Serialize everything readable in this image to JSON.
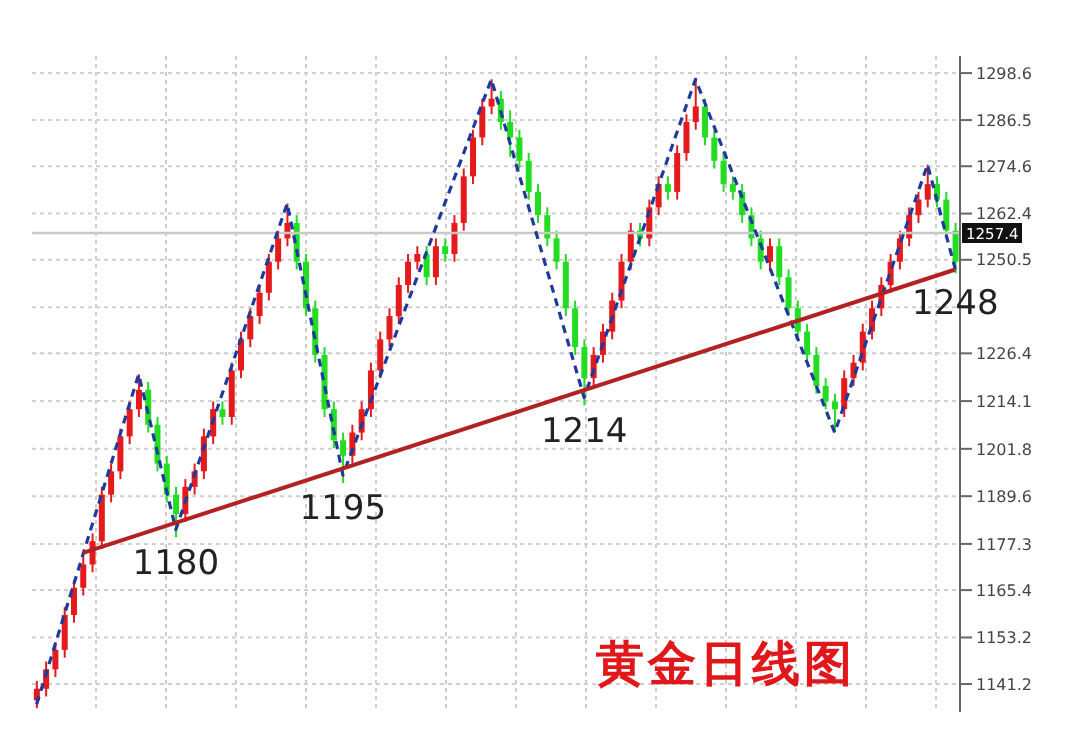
{
  "chart_data": {
    "type": "candlestick",
    "title": "黄金日线图",
    "categories": [
      null,
      null,
      null,
      null,
      null,
      null,
      null,
      null,
      null,
      null,
      null,
      null,
      null,
      null,
      null,
      null,
      null,
      null,
      null,
      null,
      null,
      null,
      null,
      null,
      null,
      null,
      null,
      null,
      null,
      null,
      null,
      null,
      null,
      null,
      null,
      null,
      null,
      null,
      null,
      null,
      null,
      null,
      null,
      null,
      null,
      null,
      null,
      null,
      null,
      null,
      null,
      null,
      null,
      null,
      null,
      null,
      null,
      null,
      null,
      null,
      null,
      null,
      null,
      null,
      null,
      null,
      null,
      null,
      null,
      null,
      null,
      null,
      null,
      null,
      null,
      null,
      null,
      null,
      null,
      null,
      null,
      null,
      null,
      null,
      null,
      null,
      null,
      null,
      null,
      null,
      null,
      null,
      null,
      null,
      null,
      null,
      null,
      null,
      null,
      null
    ],
    "ohlc": [
      [
        1137,
        1142,
        1135,
        1140
      ],
      [
        1140,
        1147,
        1138,
        1145
      ],
      [
        1145,
        1152,
        1143,
        1150
      ],
      [
        1150,
        1161,
        1148,
        1159
      ],
      [
        1159,
        1168,
        1157,
        1166
      ],
      [
        1166,
        1174,
        1164,
        1172
      ],
      [
        1172,
        1180,
        1170,
        1178
      ],
      [
        1178,
        1192,
        1176,
        1190
      ],
      [
        1190,
        1198,
        1188,
        1196
      ],
      [
        1196,
        1207,
        1194,
        1205
      ],
      [
        1205,
        1214,
        1203,
        1212
      ],
      [
        1212,
        1221,
        1210,
        1217
      ],
      [
        1217,
        1219,
        1206,
        1208
      ],
      [
        1208,
        1210,
        1196,
        1198
      ],
      [
        1198,
        1200,
        1188,
        1190
      ],
      [
        1190,
        1192,
        1179,
        1185
      ],
      [
        1185,
        1194,
        1183,
        1192
      ],
      [
        1192,
        1198,
        1190,
        1196
      ],
      [
        1196,
        1207,
        1194,
        1205
      ],
      [
        1205,
        1214,
        1203,
        1212
      ],
      [
        1212,
        1214,
        1208,
        1210
      ],
      [
        1210,
        1224,
        1208,
        1222
      ],
      [
        1222,
        1232,
        1220,
        1230
      ],
      [
        1230,
        1238,
        1228,
        1236
      ],
      [
        1236,
        1244,
        1234,
        1242
      ],
      [
        1242,
        1252,
        1240,
        1250
      ],
      [
        1250,
        1258,
        1248,
        1256
      ],
      [
        1256,
        1265,
        1254,
        1260
      ],
      [
        1260,
        1262,
        1248,
        1250
      ],
      [
        1250,
        1252,
        1236,
        1238
      ],
      [
        1238,
        1240,
        1224,
        1226
      ],
      [
        1226,
        1228,
        1210,
        1212
      ],
      [
        1212,
        1214,
        1202,
        1204
      ],
      [
        1204,
        1206,
        1193,
        1200
      ],
      [
        1200,
        1208,
        1198,
        1206
      ],
      [
        1206,
        1214,
        1204,
        1212
      ],
      [
        1212,
        1224,
        1210,
        1222
      ],
      [
        1222,
        1232,
        1220,
        1230
      ],
      [
        1230,
        1238,
        1228,
        1236
      ],
      [
        1236,
        1246,
        1234,
        1244
      ],
      [
        1244,
        1252,
        1242,
        1250
      ],
      [
        1250,
        1254,
        1248,
        1252
      ],
      [
        1252,
        1254,
        1244,
        1246
      ],
      [
        1246,
        1256,
        1244,
        1254
      ],
      [
        1254,
        1256,
        1250,
        1252
      ],
      [
        1252,
        1262,
        1250,
        1260
      ],
      [
        1260,
        1274,
        1258,
        1272
      ],
      [
        1272,
        1284,
        1270,
        1282
      ],
      [
        1282,
        1292,
        1280,
        1290
      ],
      [
        1290,
        1297,
        1288,
        1292
      ],
      [
        1292,
        1294,
        1284,
        1286
      ],
      [
        1286,
        1289,
        1277,
        1282
      ],
      [
        1282,
        1284,
        1274,
        1276
      ],
      [
        1276,
        1278,
        1266,
        1268
      ],
      [
        1268,
        1270,
        1260,
        1262
      ],
      [
        1262,
        1264,
        1254,
        1256
      ],
      [
        1256,
        1258,
        1248,
        1250
      ],
      [
        1250,
        1252,
        1236,
        1238
      ],
      [
        1238,
        1240,
        1226,
        1228
      ],
      [
        1228,
        1230,
        1213,
        1220
      ],
      [
        1220,
        1228,
        1218,
        1226
      ],
      [
        1226,
        1234,
        1224,
        1232
      ],
      [
        1232,
        1242,
        1230,
        1240
      ],
      [
        1240,
        1252,
        1238,
        1250
      ],
      [
        1250,
        1260,
        1248,
        1258
      ],
      [
        1258,
        1260,
        1254,
        1256
      ],
      [
        1256,
        1266,
        1254,
        1264
      ],
      [
        1264,
        1272,
        1262,
        1270
      ],
      [
        1270,
        1272,
        1266,
        1268
      ],
      [
        1268,
        1280,
        1266,
        1278
      ],
      [
        1278,
        1288,
        1276,
        1286
      ],
      [
        1286,
        1297,
        1284,
        1290
      ],
      [
        1290,
        1292,
        1280,
        1282
      ],
      [
        1282,
        1284,
        1274,
        1276
      ],
      [
        1276,
        1278,
        1268,
        1270
      ],
      [
        1270,
        1272,
        1266,
        1268
      ],
      [
        1268,
        1270,
        1260,
        1262
      ],
      [
        1262,
        1264,
        1254,
        1256
      ],
      [
        1256,
        1258,
        1248,
        1250
      ],
      [
        1250,
        1256,
        1248,
        1254
      ],
      [
        1254,
        1256,
        1244,
        1246
      ],
      [
        1246,
        1248,
        1236,
        1238
      ],
      [
        1238,
        1240,
        1230,
        1232
      ],
      [
        1232,
        1234,
        1224,
        1226
      ],
      [
        1226,
        1228,
        1216,
        1218
      ],
      [
        1218,
        1220,
        1212,
        1214
      ],
      [
        1214,
        1216,
        1206,
        1212
      ],
      [
        1212,
        1222,
        1210,
        1220
      ],
      [
        1220,
        1226,
        1218,
        1224
      ],
      [
        1224,
        1234,
        1222,
        1232
      ],
      [
        1232,
        1240,
        1230,
        1238
      ],
      [
        1238,
        1246,
        1236,
        1244
      ],
      [
        1244,
        1252,
        1242,
        1250
      ],
      [
        1250,
        1258,
        1248,
        1256
      ],
      [
        1256,
        1264,
        1254,
        1262
      ],
      [
        1262,
        1268,
        1260,
        1266
      ],
      [
        1266,
        1275,
        1264,
        1270
      ],
      [
        1270,
        1272,
        1264,
        1266
      ],
      [
        1266,
        1268,
        1256,
        1258
      ],
      [
        1258,
        1260,
        1247,
        1250
      ]
    ],
    "colors": [
      "#e41a1c",
      "#e41a1c",
      "#e41a1c",
      "#e41a1c",
      "#e41a1c",
      "#e41a1c",
      "#e41a1c",
      "#e41a1c",
      "#e41a1c",
      "#e41a1c",
      "#e41a1c",
      "#e41a1c",
      "#22dd22",
      "#22dd22",
      "#22dd22",
      "#22dd22",
      "#e41a1c",
      "#e41a1c",
      "#e41a1c",
      "#e41a1c",
      "#22dd22",
      "#e41a1c",
      "#e41a1c",
      "#e41a1c",
      "#e41a1c",
      "#e41a1c",
      "#e41a1c",
      "#e41a1c",
      "#22dd22",
      "#22dd22",
      "#22dd22",
      "#22dd22",
      "#22dd22",
      "#22dd22",
      "#e41a1c",
      "#e41a1c",
      "#e41a1c",
      "#e41a1c",
      "#e41a1c",
      "#e41a1c",
      "#e41a1c",
      "#e41a1c",
      "#22dd22",
      "#e41a1c",
      "#22dd22",
      "#e41a1c",
      "#e41a1c",
      "#e41a1c",
      "#e41a1c",
      "#e41a1c",
      "#22dd22",
      "#22dd22",
      "#22dd22",
      "#22dd22",
      "#22dd22",
      "#22dd22",
      "#22dd22",
      "#22dd22",
      "#22dd22",
      "#22dd22",
      "#e41a1c",
      "#e41a1c",
      "#e41a1c",
      "#e41a1c",
      "#e41a1c",
      "#22dd22",
      "#e41a1c",
      "#e41a1c",
      "#22dd22",
      "#e41a1c",
      "#e41a1c",
      "#e41a1c",
      "#22dd22",
      "#22dd22",
      "#22dd22",
      "#22dd22",
      "#22dd22",
      "#22dd22",
      "#22dd22",
      "#e41a1c",
      "#22dd22",
      "#22dd22",
      "#22dd22",
      "#22dd22",
      "#22dd22",
      "#22dd22",
      "#22dd22",
      "#e41a1c",
      "#e41a1c",
      "#e41a1c",
      "#e41a1c",
      "#e41a1c",
      "#e41a1c",
      "#e41a1c",
      "#e41a1c",
      "#e41a1c",
      "#e41a1c",
      "#22dd22",
      "#22dd22",
      "#22dd22"
    ],
    "series": [
      {
        "type": "line",
        "color": "#1f3a9e",
        "line_style": "dashed",
        "values": [
          1136,
          null,
          null,
          null,
          null,
          null,
          null,
          null,
          null,
          null,
          null,
          1221,
          null,
          null,
          null,
          1181,
          null,
          null,
          null,
          null,
          null,
          null,
          null,
          null,
          null,
          null,
          null,
          1265,
          null,
          null,
          null,
          null,
          null,
          1195,
          null,
          null,
          null,
          null,
          null,
          null,
          null,
          null,
          null,
          null,
          null,
          null,
          null,
          null,
          null,
          1297,
          null,
          null,
          null,
          null,
          null,
          null,
          null,
          null,
          null,
          1215,
          null,
          null,
          null,
          null,
          null,
          null,
          null,
          null,
          null,
          null,
          null,
          1297,
          null,
          null,
          null,
          null,
          null,
          null,
          null,
          null,
          null,
          null,
          null,
          null,
          null,
          null,
          1206,
          null,
          null,
          null,
          null,
          null,
          null,
          null,
          null,
          null,
          1275,
          null,
          null,
          1248
        ]
      },
      {
        "type": "line",
        "color": "#b22222",
        "line_style": "solid",
        "values": [
          null,
          null,
          null,
          null,
          null,
          1175,
          null,
          null,
          null,
          null,
          null,
          null,
          null,
          null,
          null,
          null,
          null,
          null,
          null,
          null,
          null,
          null,
          null,
          null,
          null,
          null,
          null,
          null,
          null,
          null,
          null,
          null,
          null,
          null,
          null,
          null,
          null,
          null,
          null,
          null,
          null,
          null,
          null,
          null,
          null,
          null,
          null,
          null,
          null,
          null,
          null,
          null,
          null,
          null,
          null,
          null,
          null,
          null,
          null,
          null,
          null,
          null,
          null,
          null,
          null,
          null,
          null,
          null,
          null,
          null,
          null,
          null,
          null,
          null,
          null,
          null,
          null,
          null,
          null,
          null,
          null,
          null,
          null,
          null,
          null,
          null,
          null,
          null,
          null,
          null,
          null,
          null,
          null,
          null,
          null,
          null,
          null,
          null,
          null,
          1248
        ]
      }
    ],
    "ylim": [
      1134,
      1303
    ],
    "yticks": [
      1141.2,
      1153.2,
      1165.4,
      1177.3,
      1189.6,
      1201.8,
      1214.1,
      1226.4,
      {
        "value": 1238.3,
        "label": null
      },
      1250.5,
      1262.4,
      1274.6,
      1286.5,
      1298.6
    ],
    "tick_labels": "y",
    "grid": true,
    "marker": "none",
    "ref_lines": [
      {
        "axis": "y",
        "value": 1257.4,
        "label": "1257.4",
        "color": "#c8c8c8"
      }
    ],
    "annotations": [
      {
        "text": "1180",
        "y": 1181
      },
      {
        "text": "1195",
        "y": 1195
      },
      {
        "text": "1214",
        "y": 1215
      },
      {
        "text": "1248",
        "y": 1248
      }
    ]
  }
}
